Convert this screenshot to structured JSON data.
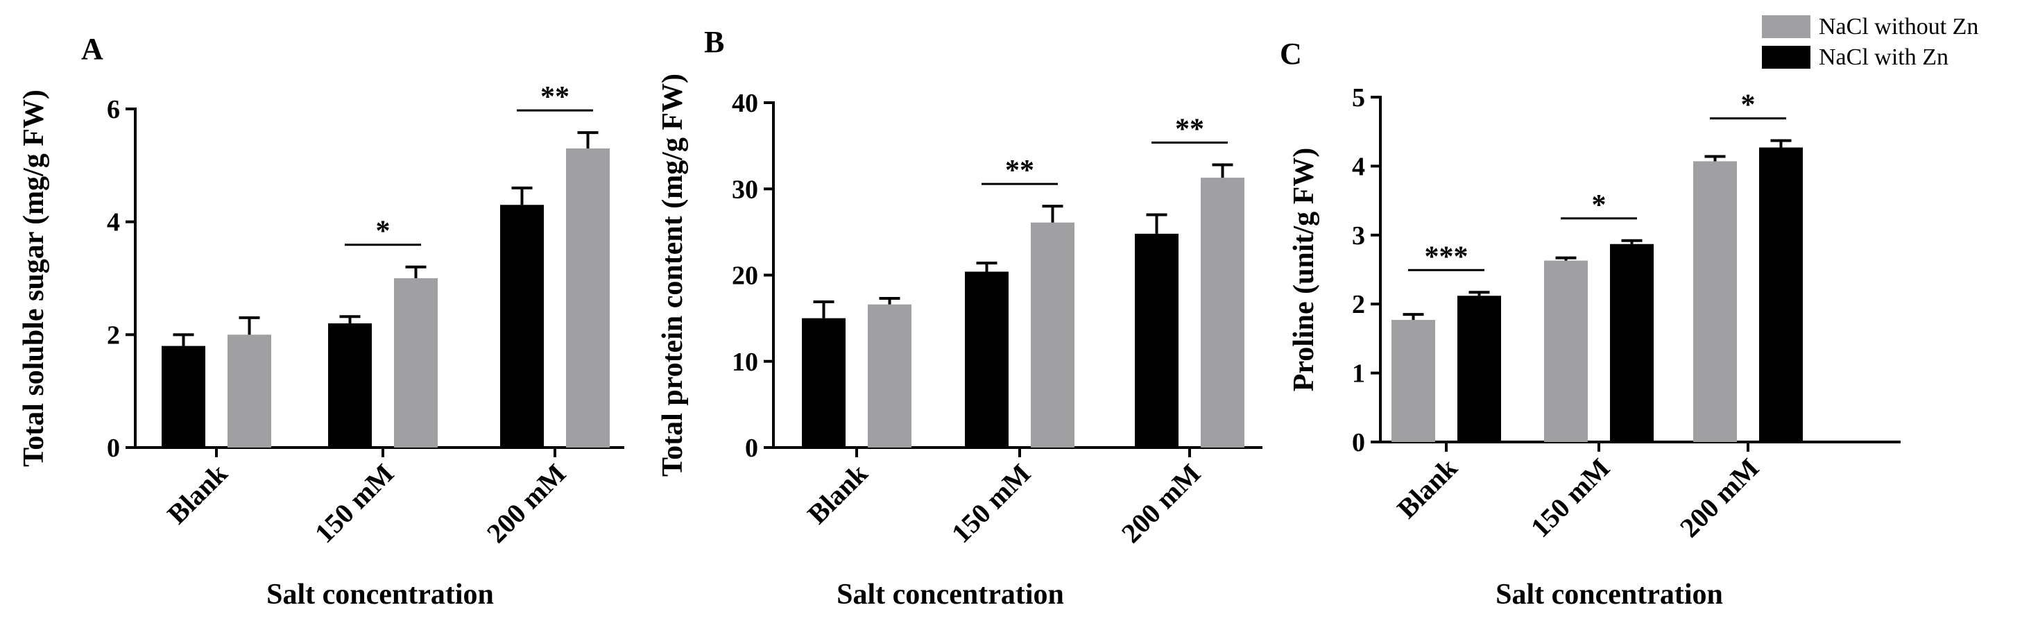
{
  "colors": {
    "black": "#000000",
    "gray": "#a0a0a3"
  },
  "legend": [
    {
      "label": "NaCl without Zn",
      "color": "gray"
    },
    {
      "label": "NaCl with Zn",
      "color": "black"
    }
  ],
  "chart_data": [
    {
      "type": "bar",
      "panel": "A",
      "ylabel": "Total soluble sugar (mg/g FW)",
      "xlabel": "Salt concentration",
      "categories": [
        "Blank",
        "150 mM",
        "200 mM"
      ],
      "ylim": [
        0,
        6
      ],
      "yticks": [
        "0",
        "2",
        "4",
        "6"
      ],
      "series": [
        {
          "color": "black",
          "values": [
            1.8,
            2.2,
            4.3
          ],
          "errors": [
            0.2,
            0.12,
            0.3
          ]
        },
        {
          "color": "gray",
          "values": [
            2.0,
            3.0,
            5.3
          ],
          "errors": [
            0.3,
            0.2,
            0.28
          ]
        }
      ],
      "significance": [
        "",
        "*",
        "**"
      ]
    },
    {
      "type": "bar",
      "panel": "B",
      "ylabel": "Total protein content (mg/g FW)",
      "xlabel": "Salt concentration",
      "categories": [
        "Blank",
        "150 mM",
        "200 mM"
      ],
      "ylim": [
        0,
        40
      ],
      "yticks": [
        "0",
        "10",
        "20",
        "30",
        "40"
      ],
      "series": [
        {
          "color": "black",
          "values": [
            15.0,
            20.4,
            24.8
          ],
          "errors": [
            1.9,
            1.0,
            2.2
          ]
        },
        {
          "color": "gray",
          "values": [
            16.6,
            26.1,
            31.3
          ],
          "errors": [
            0.7,
            1.9,
            1.5
          ]
        }
      ],
      "significance": [
        "",
        "**",
        "**"
      ]
    },
    {
      "type": "bar",
      "panel": "C",
      "ylabel": "Proline (unit/g FW)",
      "xlabel": "Salt concentration",
      "categories": [
        "Blank",
        "150 mM",
        "200 mM"
      ],
      "ylim": [
        0,
        5
      ],
      "yticks": [
        "0",
        "1",
        "2",
        "3",
        "4",
        "5"
      ],
      "series": [
        {
          "color": "gray",
          "values": [
            1.77,
            2.63,
            4.07
          ],
          "errors": [
            0.08,
            0.04,
            0.07
          ]
        },
        {
          "color": "black",
          "values": [
            2.12,
            2.87,
            4.27
          ],
          "errors": [
            0.05,
            0.05,
            0.1
          ]
        }
      ],
      "significance": [
        "***",
        "*",
        "*"
      ]
    }
  ]
}
